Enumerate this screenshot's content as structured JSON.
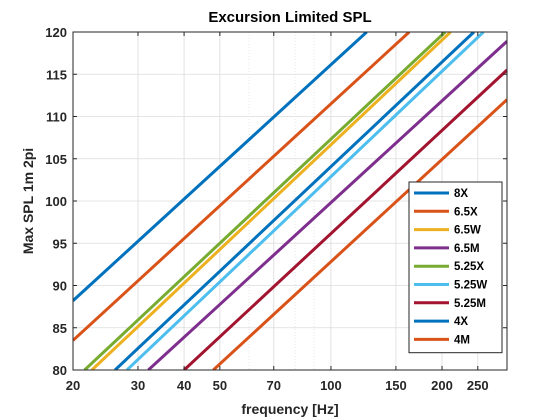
{
  "chart_data": {
    "type": "line",
    "title": "Excursion Limited SPL",
    "xlabel": "frequency [Hz]",
    "ylabel": "Max SPL 1m 2pi",
    "x_scale": "log",
    "xlim": [
      20,
      300
    ],
    "ylim": [
      80,
      120
    ],
    "x_ticks": [
      20,
      30,
      40,
      50,
      70,
      100,
      150,
      200,
      250
    ],
    "x_tick_labels": [
      "20",
      "30",
      "40",
      "50",
      "70",
      "100",
      "150",
      "200",
      "250"
    ],
    "y_ticks": [
      80,
      85,
      90,
      95,
      100,
      105,
      110,
      115,
      120
    ],
    "y_tick_labels": [
      "80",
      "85",
      "90",
      "95",
      "100",
      "105",
      "110",
      "115",
      "120"
    ],
    "grid": true,
    "legend_position": "lower-right",
    "series": [
      {
        "name": "8X",
        "color": "#0072BD",
        "x": [
          20,
          125
        ],
        "y": [
          88.2,
          120
        ]
      },
      {
        "name": "6.5X",
        "color": "#D95319",
        "x": [
          20,
          163
        ],
        "y": [
          83.5,
          120
        ]
      },
      {
        "name": "6.5W",
        "color": "#EDB120",
        "x": [
          22.5,
          211
        ],
        "y": [
          80,
          120
        ]
      },
      {
        "name": "6.5M",
        "color": "#7E2F8E",
        "x": [
          32,
          300
        ],
        "y": [
          80,
          118.9
        ]
      },
      {
        "name": "5.25X",
        "color": "#77AC30",
        "x": [
          21.5,
          204
        ],
        "y": [
          80,
          120
        ]
      },
      {
        "name": "5.25W",
        "color": "#4DBEEE",
        "x": [
          28,
          259
        ],
        "y": [
          80,
          120
        ]
      },
      {
        "name": "5.25M",
        "color": "#A2142F",
        "x": [
          40,
          300
        ],
        "y": [
          80,
          115.5
        ]
      },
      {
        "name": "4X",
        "color": "#0072BD",
        "x": [
          26,
          244
        ],
        "y": [
          80,
          120
        ]
      },
      {
        "name": "4M",
        "color": "#D95319",
        "x": [
          48,
          300
        ],
        "y": [
          80,
          112
        ]
      }
    ]
  }
}
